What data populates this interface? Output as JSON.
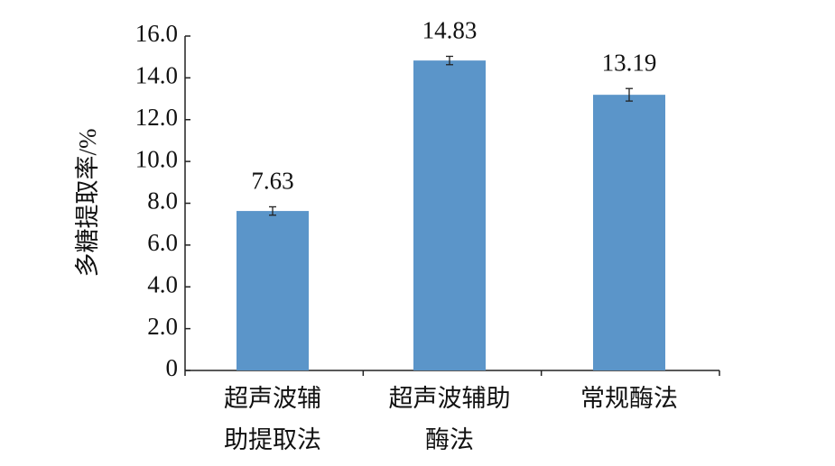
{
  "chart_data": {
    "type": "bar",
    "y_label": "多糖提取率/%",
    "categories": [
      "超声波辅\n助提取法",
      "超声波辅助\n酶法",
      "常规酶法"
    ],
    "values": [
      7.63,
      14.83,
      13.19
    ],
    "errors": [
      0.2,
      0.2,
      0.3
    ],
    "color": "#5b95c9",
    "ylim": [
      0,
      16
    ],
    "yticks": [
      0,
      {
        "value": 2,
        "label": "2.0"
      },
      {
        "value": 4,
        "label": "4.0"
      },
      {
        "value": 6,
        "label": "6.0"
      },
      {
        "value": 8,
        "label": "8.0"
      },
      {
        "value": 10,
        "label": "10.0"
      },
      {
        "value": 12,
        "label": "12.0"
      },
      {
        "value": 14,
        "label": "14.0"
      },
      {
        "value": 16,
        "label": "16.0"
      }
    ]
  }
}
